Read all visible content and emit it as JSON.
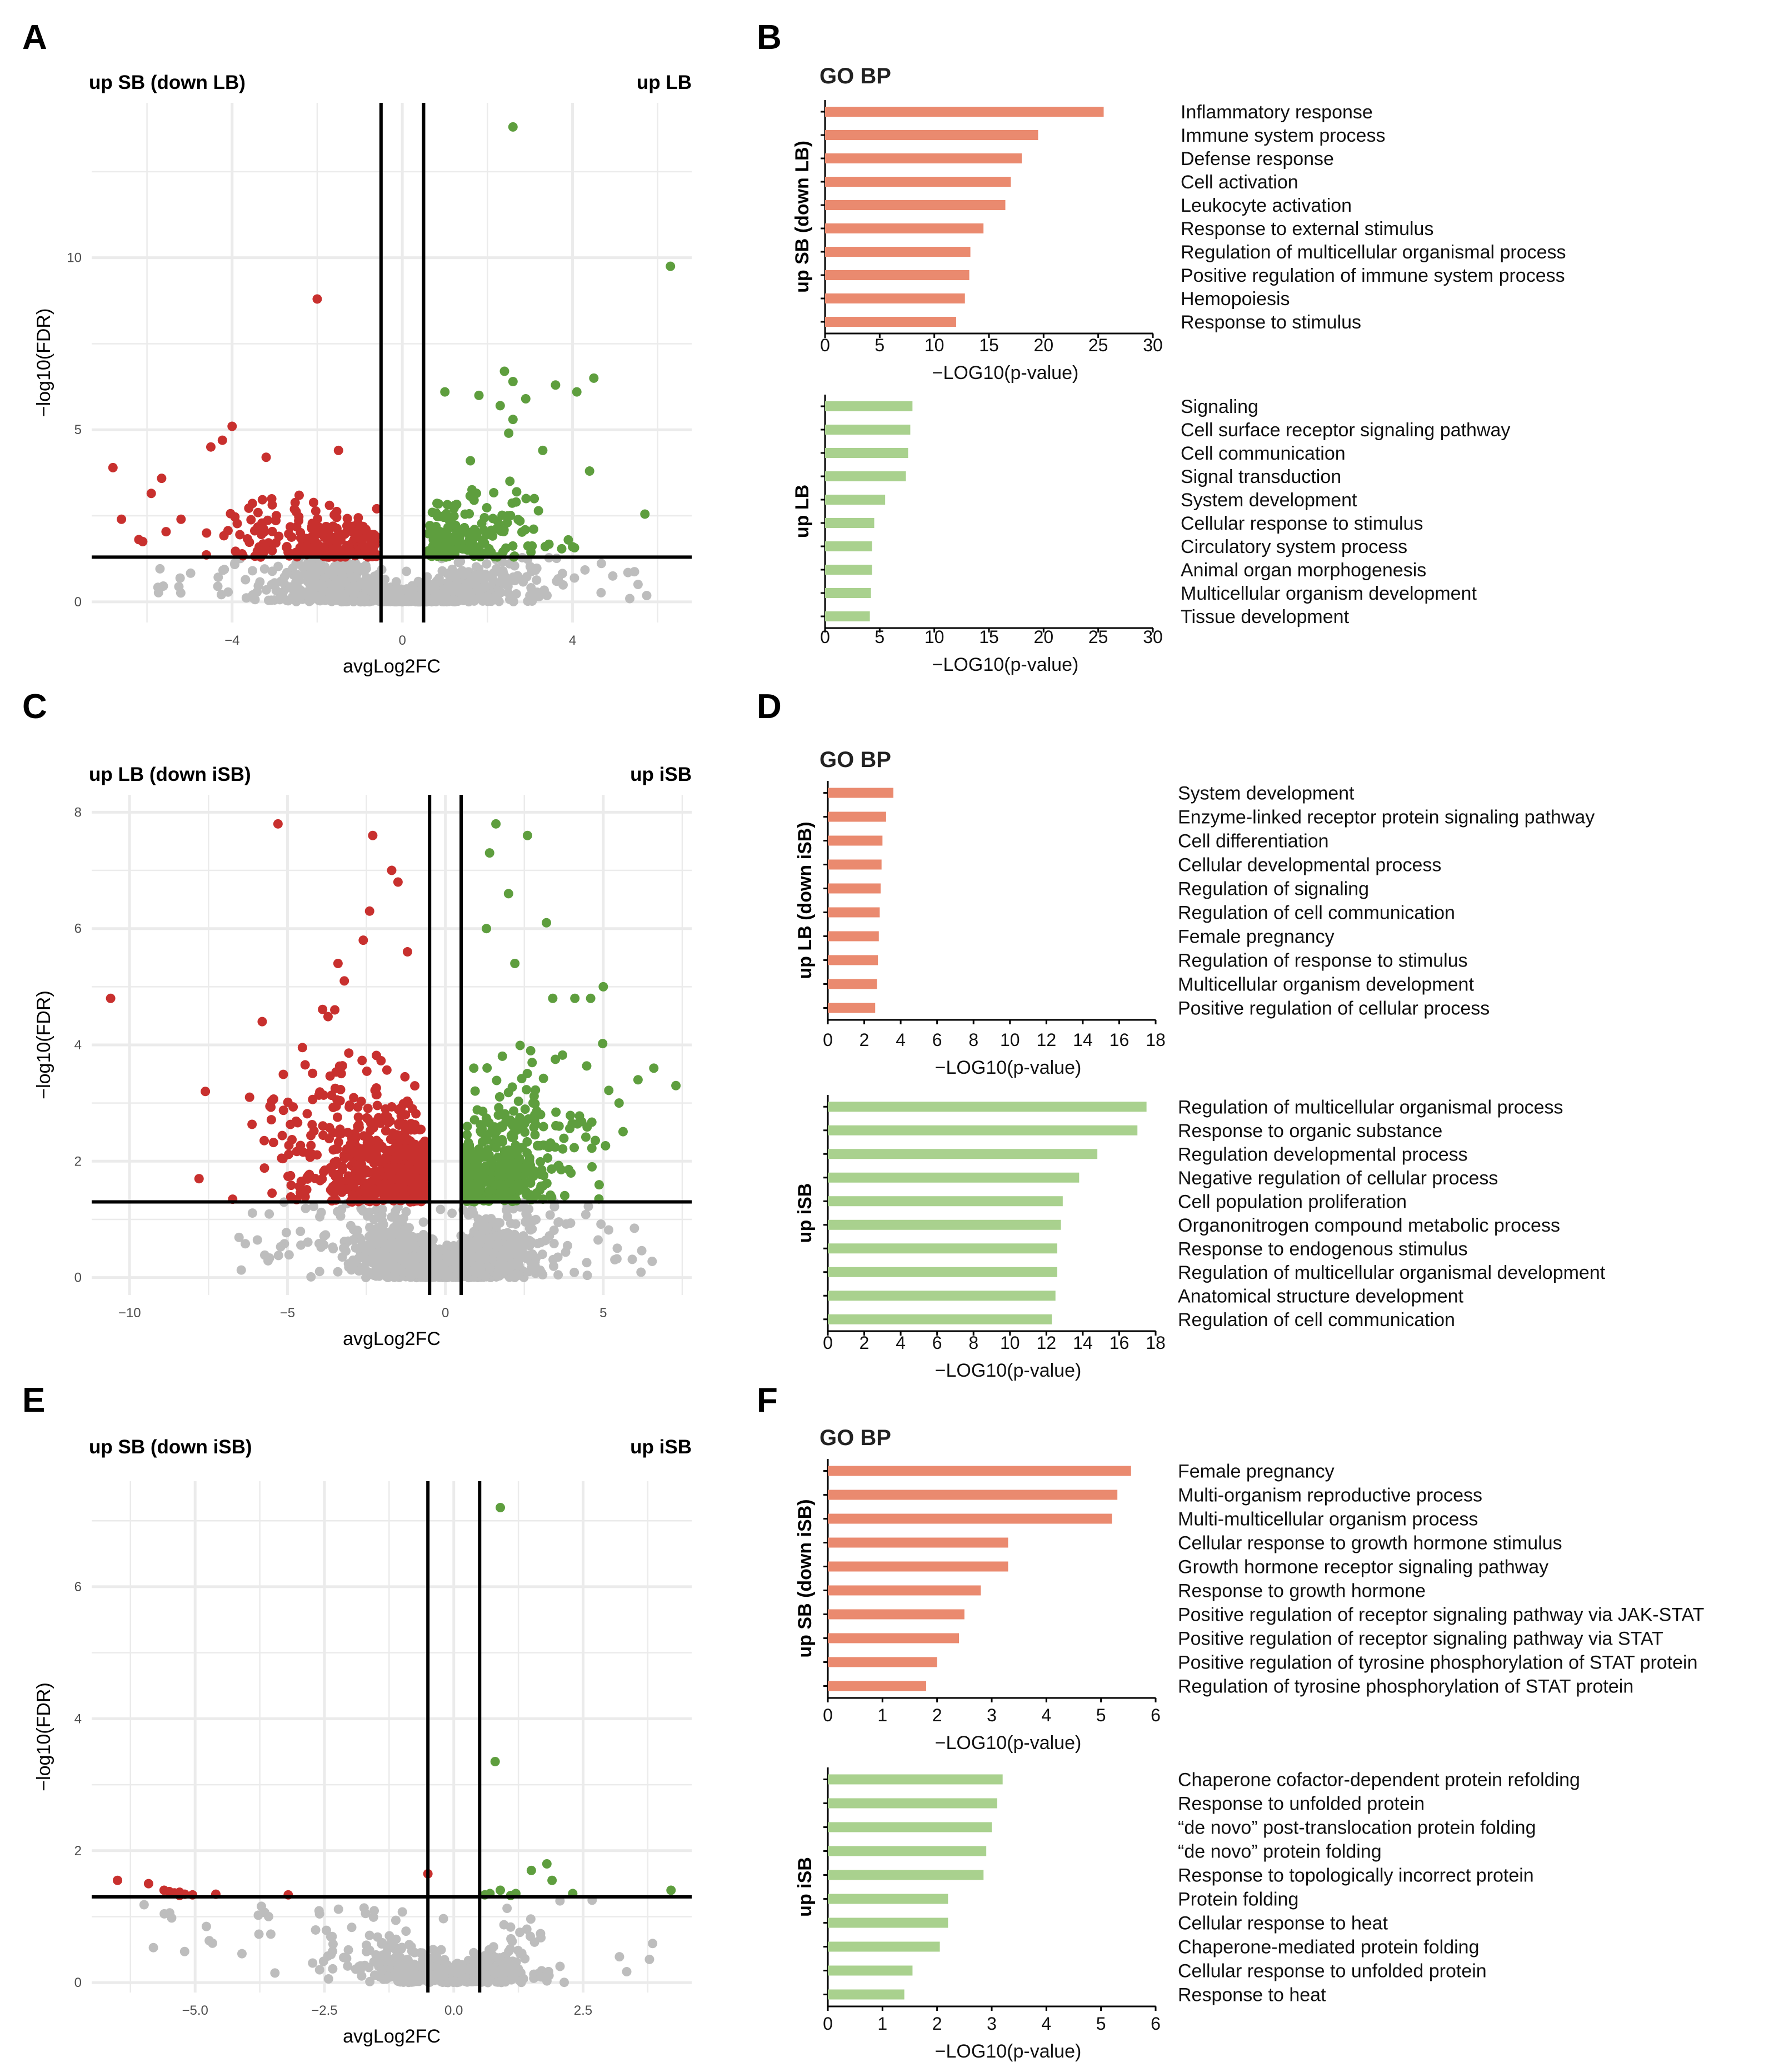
{
  "colors": {
    "down": "#c8302e",
    "up": "#5e9e3e",
    "ns": "#bdbdbd",
    "bar_down": "#ea8a6f",
    "bar_up": "#a9d18e",
    "grid": "#ebebeb",
    "axis": "#000000"
  },
  "chart_data": [
    {
      "panel": "A",
      "type": "scatter",
      "title_left": "up SB (down LB)",
      "title_right": "up LB",
      "xlabel": "avgLog2FC",
      "ylabel": "−log10(FDR)",
      "xlim": [
        -7.3,
        6.8
      ],
      "ylim": [
        -0.6,
        14.5
      ],
      "xticks": [
        -4,
        0,
        4
      ],
      "xtick_labels": [
        "−4",
        "0",
        "4"
      ],
      "yticks": [
        0,
        5,
        10
      ],
      "ytick_labels": [
        "0",
        "5",
        "10"
      ],
      "fc_threshold": 0.5,
      "fdr_threshold": 1.3,
      "highlight_up": [
        [
          2.6,
          13.8
        ],
        [
          6.3,
          9.75
        ],
        [
          5.7,
          2.55
        ],
        [
          4.5,
          6.5
        ],
        [
          4.1,
          6.1
        ],
        [
          3.6,
          6.3
        ],
        [
          2.4,
          6.7
        ],
        [
          2.6,
          6.4
        ],
        [
          1.8,
          6.0
        ],
        [
          2.9,
          5.9
        ],
        [
          1.0,
          6.1
        ],
        [
          2.3,
          5.7
        ],
        [
          2.6,
          5.3
        ],
        [
          3.3,
          4.4
        ],
        [
          4.4,
          3.8
        ],
        [
          2.5,
          4.9
        ],
        [
          1.6,
          4.1
        ],
        [
          3.9,
          1.8
        ],
        [
          4.0,
          1.6
        ],
        [
          3.1,
          3.0
        ]
      ],
      "highlight_down": [
        [
          -2.0,
          8.8
        ],
        [
          -4.0,
          5.1
        ],
        [
          -4.5,
          4.5
        ],
        [
          -3.2,
          4.2
        ],
        [
          -6.8,
          3.9
        ],
        [
          -1.5,
          4.4
        ],
        [
          -5.9,
          3.15
        ],
        [
          -6.6,
          2.4
        ],
        [
          -6.1,
          1.75
        ],
        [
          -5.2,
          2.4
        ],
        [
          -4.6,
          2.0
        ]
      ],
      "counts": {
        "up": 170,
        "down": 240,
        "ns": 1400
      }
    },
    {
      "panel": "C",
      "type": "scatter",
      "title_left": "up LB (down iSB)",
      "title_right": "up iSB",
      "xlabel": "avgLog2FC",
      "ylabel": "−log10(FDR)",
      "xlim": [
        -11.2,
        7.8
      ],
      "ylim": [
        -0.3,
        8.3
      ],
      "xticks": [
        -10,
        -5,
        0,
        5
      ],
      "xtick_labels": [
        "−10",
        "−5",
        "0",
        "5"
      ],
      "yticks": [
        0,
        2,
        4,
        6,
        8
      ],
      "ytick_labels": [
        "0",
        "2",
        "4",
        "6",
        "8"
      ],
      "fc_threshold": 0.5,
      "fdr_threshold": 1.3,
      "highlight_up": [
        [
          1.6,
          7.8
        ],
        [
          2.6,
          7.6
        ],
        [
          1.4,
          7.3
        ],
        [
          2.0,
          6.6
        ],
        [
          3.2,
          6.1
        ],
        [
          1.3,
          6.0
        ],
        [
          2.2,
          5.4
        ],
        [
          5.0,
          5.0
        ],
        [
          4.6,
          4.8
        ],
        [
          4.1,
          4.8
        ],
        [
          3.4,
          4.8
        ],
        [
          7.3,
          3.3
        ],
        [
          6.6,
          3.6
        ],
        [
          6.1,
          3.4
        ],
        [
          5.5,
          3.0
        ],
        [
          2.7,
          3.9
        ],
        [
          0.9,
          3.6
        ]
      ],
      "highlight_down": [
        [
          -10.6,
          4.8
        ],
        [
          -5.3,
          7.8
        ],
        [
          -2.3,
          7.6
        ],
        [
          -1.7,
          7.0
        ],
        [
          -1.5,
          6.8
        ],
        [
          -2.4,
          6.3
        ],
        [
          -3.4,
          5.4
        ],
        [
          -2.6,
          5.8
        ],
        [
          -1.2,
          5.6
        ],
        [
          -3.2,
          5.1
        ],
        [
          -5.8,
          4.4
        ],
        [
          -7.6,
          3.2
        ],
        [
          -7.8,
          1.7
        ],
        [
          -6.2,
          3.1
        ]
      ],
      "counts": {
        "up": 420,
        "down": 560,
        "ns": 1800
      }
    },
    {
      "panel": "E",
      "type": "scatter",
      "title_left": "up SB (down iSB)",
      "title_right": "up iSB",
      "xlabel": "avgLog2FC",
      "ylabel": "−log10(FDR)",
      "xlim": [
        -7.0,
        4.6
      ],
      "ylim": [
        -0.15,
        7.6
      ],
      "xticks": [
        -5.0,
        -2.5,
        0.0,
        2.5
      ],
      "xtick_labels": [
        "−5.0",
        "−2.5",
        "0.0",
        "2.5"
      ],
      "yticks": [
        0,
        2,
        4,
        6
      ],
      "ytick_labels": [
        "0",
        "2",
        "4",
        "6"
      ],
      "fc_threshold": 0.5,
      "fdr_threshold": 1.3,
      "points_up": [
        [
          0.9,
          7.2
        ],
        [
          0.8,
          3.35
        ],
        [
          1.8,
          1.8
        ],
        [
          1.5,
          1.7
        ],
        [
          1.9,
          1.55
        ],
        [
          0.7,
          1.35
        ],
        [
          0.9,
          1.4
        ],
        [
          1.2,
          1.35
        ],
        [
          1.1,
          1.32
        ],
        [
          4.2,
          1.4
        ],
        [
          2.3,
          1.35
        ],
        [
          0.6,
          1.33
        ]
      ],
      "points_down": [
        [
          -6.5,
          1.55
        ],
        [
          -5.9,
          1.5
        ],
        [
          -5.6,
          1.4
        ],
        [
          -5.5,
          1.38
        ],
        [
          -5.4,
          1.36
        ],
        [
          -5.3,
          1.37
        ],
        [
          -5.2,
          1.34
        ],
        [
          -5.05,
          1.33
        ],
        [
          -5.3,
          1.32
        ],
        [
          -4.6,
          1.34
        ],
        [
          -3.2,
          1.33
        ],
        [
          -0.5,
          1.65
        ]
      ],
      "counts": {
        "ns": 520
      }
    },
    {
      "panel": "B",
      "type": "bar",
      "orientation": "horizontal",
      "title": "GO BP",
      "groups": [
        {
          "label": "up SB (down LB)",
          "color_key": "bar_down",
          "xlim": [
            0,
            30
          ],
          "xticks": [
            0,
            5,
            10,
            15,
            20,
            25,
            30
          ],
          "xtick_labels": [
            "0",
            "5",
            "10",
            "15",
            "20",
            "25",
            "30"
          ],
          "xlabel": "−LOG10(p-value)",
          "categories": [
            "Inflammatory response",
            "Immune system process",
            "Defense response",
            "Cell activation",
            "Leukocyte activation",
            "Response to external stimulus",
            "Regulation of multicellular organismal process",
            "Positive regulation of immune system process",
            "Hemopoiesis",
            "Response to stimulus"
          ],
          "values": [
            25.5,
            19.5,
            18.0,
            17.0,
            16.5,
            14.5,
            13.3,
            13.2,
            12.8,
            12.0
          ]
        },
        {
          "label": "up LB",
          "color_key": "bar_up",
          "xlim": [
            0,
            30
          ],
          "xticks": [
            0,
            5,
            10,
            15,
            20,
            25,
            30
          ],
          "xtick_labels": [
            "0",
            "5",
            "10",
            "15",
            "20",
            "25",
            "30"
          ],
          "xlabel": "−LOG10(p-value)",
          "categories": [
            "Signaling",
            "Cell surface receptor signaling pathway",
            "Cell communication",
            "Signal transduction",
            "System development",
            "Cellular response to stimulus",
            "Circulatory system process",
            "Animal organ morphogenesis",
            "Multicellular organism development",
            "Tissue development"
          ],
          "values": [
            8.0,
            7.8,
            7.6,
            7.4,
            5.5,
            4.5,
            4.3,
            4.3,
            4.2,
            4.1
          ]
        }
      ]
    },
    {
      "panel": "D",
      "type": "bar",
      "orientation": "horizontal",
      "title": "GO BP",
      "groups": [
        {
          "label": "up LB (down iSB)",
          "color_key": "bar_down",
          "xlim": [
            0,
            18
          ],
          "xticks": [
            0,
            2,
            4,
            6,
            8,
            10,
            12,
            14,
            16,
            18
          ],
          "xtick_labels": [
            "0",
            "2",
            "4",
            "6",
            "8",
            "10",
            "12",
            "14",
            "16",
            "18"
          ],
          "xlabel": "−LOG10(p-value)",
          "categories": [
            "System development",
            "Enzyme-linked receptor protein signaling pathway",
            "Cell differentiation",
            "Cellular developmental process",
            "Regulation of signaling",
            "Regulation of cell communication",
            "Female pregnancy",
            "Regulation of response to stimulus",
            "Multicellular organism development",
            "Positive regulation of cellular process"
          ],
          "values": [
            3.6,
            3.2,
            3.0,
            2.95,
            2.9,
            2.85,
            2.8,
            2.75,
            2.7,
            2.6
          ]
        },
        {
          "label": "up iSB",
          "color_key": "bar_up",
          "xlim": [
            0,
            18
          ],
          "xticks": [
            0,
            2,
            4,
            6,
            8,
            10,
            12,
            14,
            16,
            18
          ],
          "xtick_labels": [
            "0",
            "2",
            "4",
            "6",
            "8",
            "10",
            "12",
            "14",
            "16",
            "18"
          ],
          "xlabel": "−LOG10(p-value)",
          "categories": [
            "Regulation of multicellular organismal process",
            "Response to organic substance",
            "Regulation developmental process",
            "Negative regulation of cellular process",
            "Cell population proliferation",
            "Organonitrogen compound metabolic process",
            "Response to endogenous stimulus",
            "Regulation of multicellular organismal development",
            "Anatomical structure development",
            "Regulation of cell communication"
          ],
          "values": [
            17.5,
            17.0,
            14.8,
            13.8,
            12.9,
            12.8,
            12.6,
            12.6,
            12.5,
            12.3
          ]
        }
      ]
    },
    {
      "panel": "F",
      "type": "bar",
      "orientation": "horizontal",
      "title": "GO BP",
      "groups": [
        {
          "label": "up SB (down iSB)",
          "color_key": "bar_down",
          "xlim": [
            0,
            6
          ],
          "xticks": [
            0,
            1,
            2,
            3,
            4,
            5,
            6
          ],
          "xtick_labels": [
            "0",
            "1",
            "2",
            "3",
            "4",
            "5",
            "6"
          ],
          "xlabel": "−LOG10(p-value)",
          "categories": [
            "Female pregnancy",
            "Multi-organism reproductive process",
            "Multi-multicellular organism process",
            "Cellular response to growth hormone stimulus",
            "Growth hormone receptor signaling pathway",
            "Response to growth hormone",
            "Positive regulation of receptor signaling pathway via JAK-STAT",
            "Positive regulation of receptor signaling pathway via STAT",
            "Positive regulation of tyrosine phosphorylation of STAT protein",
            "Regulation of tyrosine phosphorylation of STAT protein"
          ],
          "values": [
            5.55,
            5.3,
            5.2,
            3.3,
            3.3,
            2.8,
            2.5,
            2.4,
            2.0,
            1.8
          ]
        },
        {
          "label": "up iSB",
          "color_key": "bar_up",
          "xlim": [
            0,
            6
          ],
          "xticks": [
            0,
            1,
            2,
            3,
            4,
            5,
            6
          ],
          "xtick_labels": [
            "0",
            "1",
            "2",
            "3",
            "4",
            "5",
            "6"
          ],
          "xlabel": "−LOG10(p-value)",
          "categories": [
            "Chaperone cofactor-dependent protein refolding",
            "Response to unfolded protein",
            "“de novo” post-translocation protein folding",
            "“de novo” protein folding",
            "Response to topologically incorrect protein",
            "Protein folding",
            "Cellular response to heat",
            "Chaperone-mediated protein folding",
            "Cellular response to unfolded protein",
            "Response to heat"
          ],
          "values": [
            3.2,
            3.1,
            3.0,
            2.9,
            2.85,
            2.2,
            2.2,
            2.05,
            1.55,
            1.4
          ]
        }
      ]
    }
  ]
}
